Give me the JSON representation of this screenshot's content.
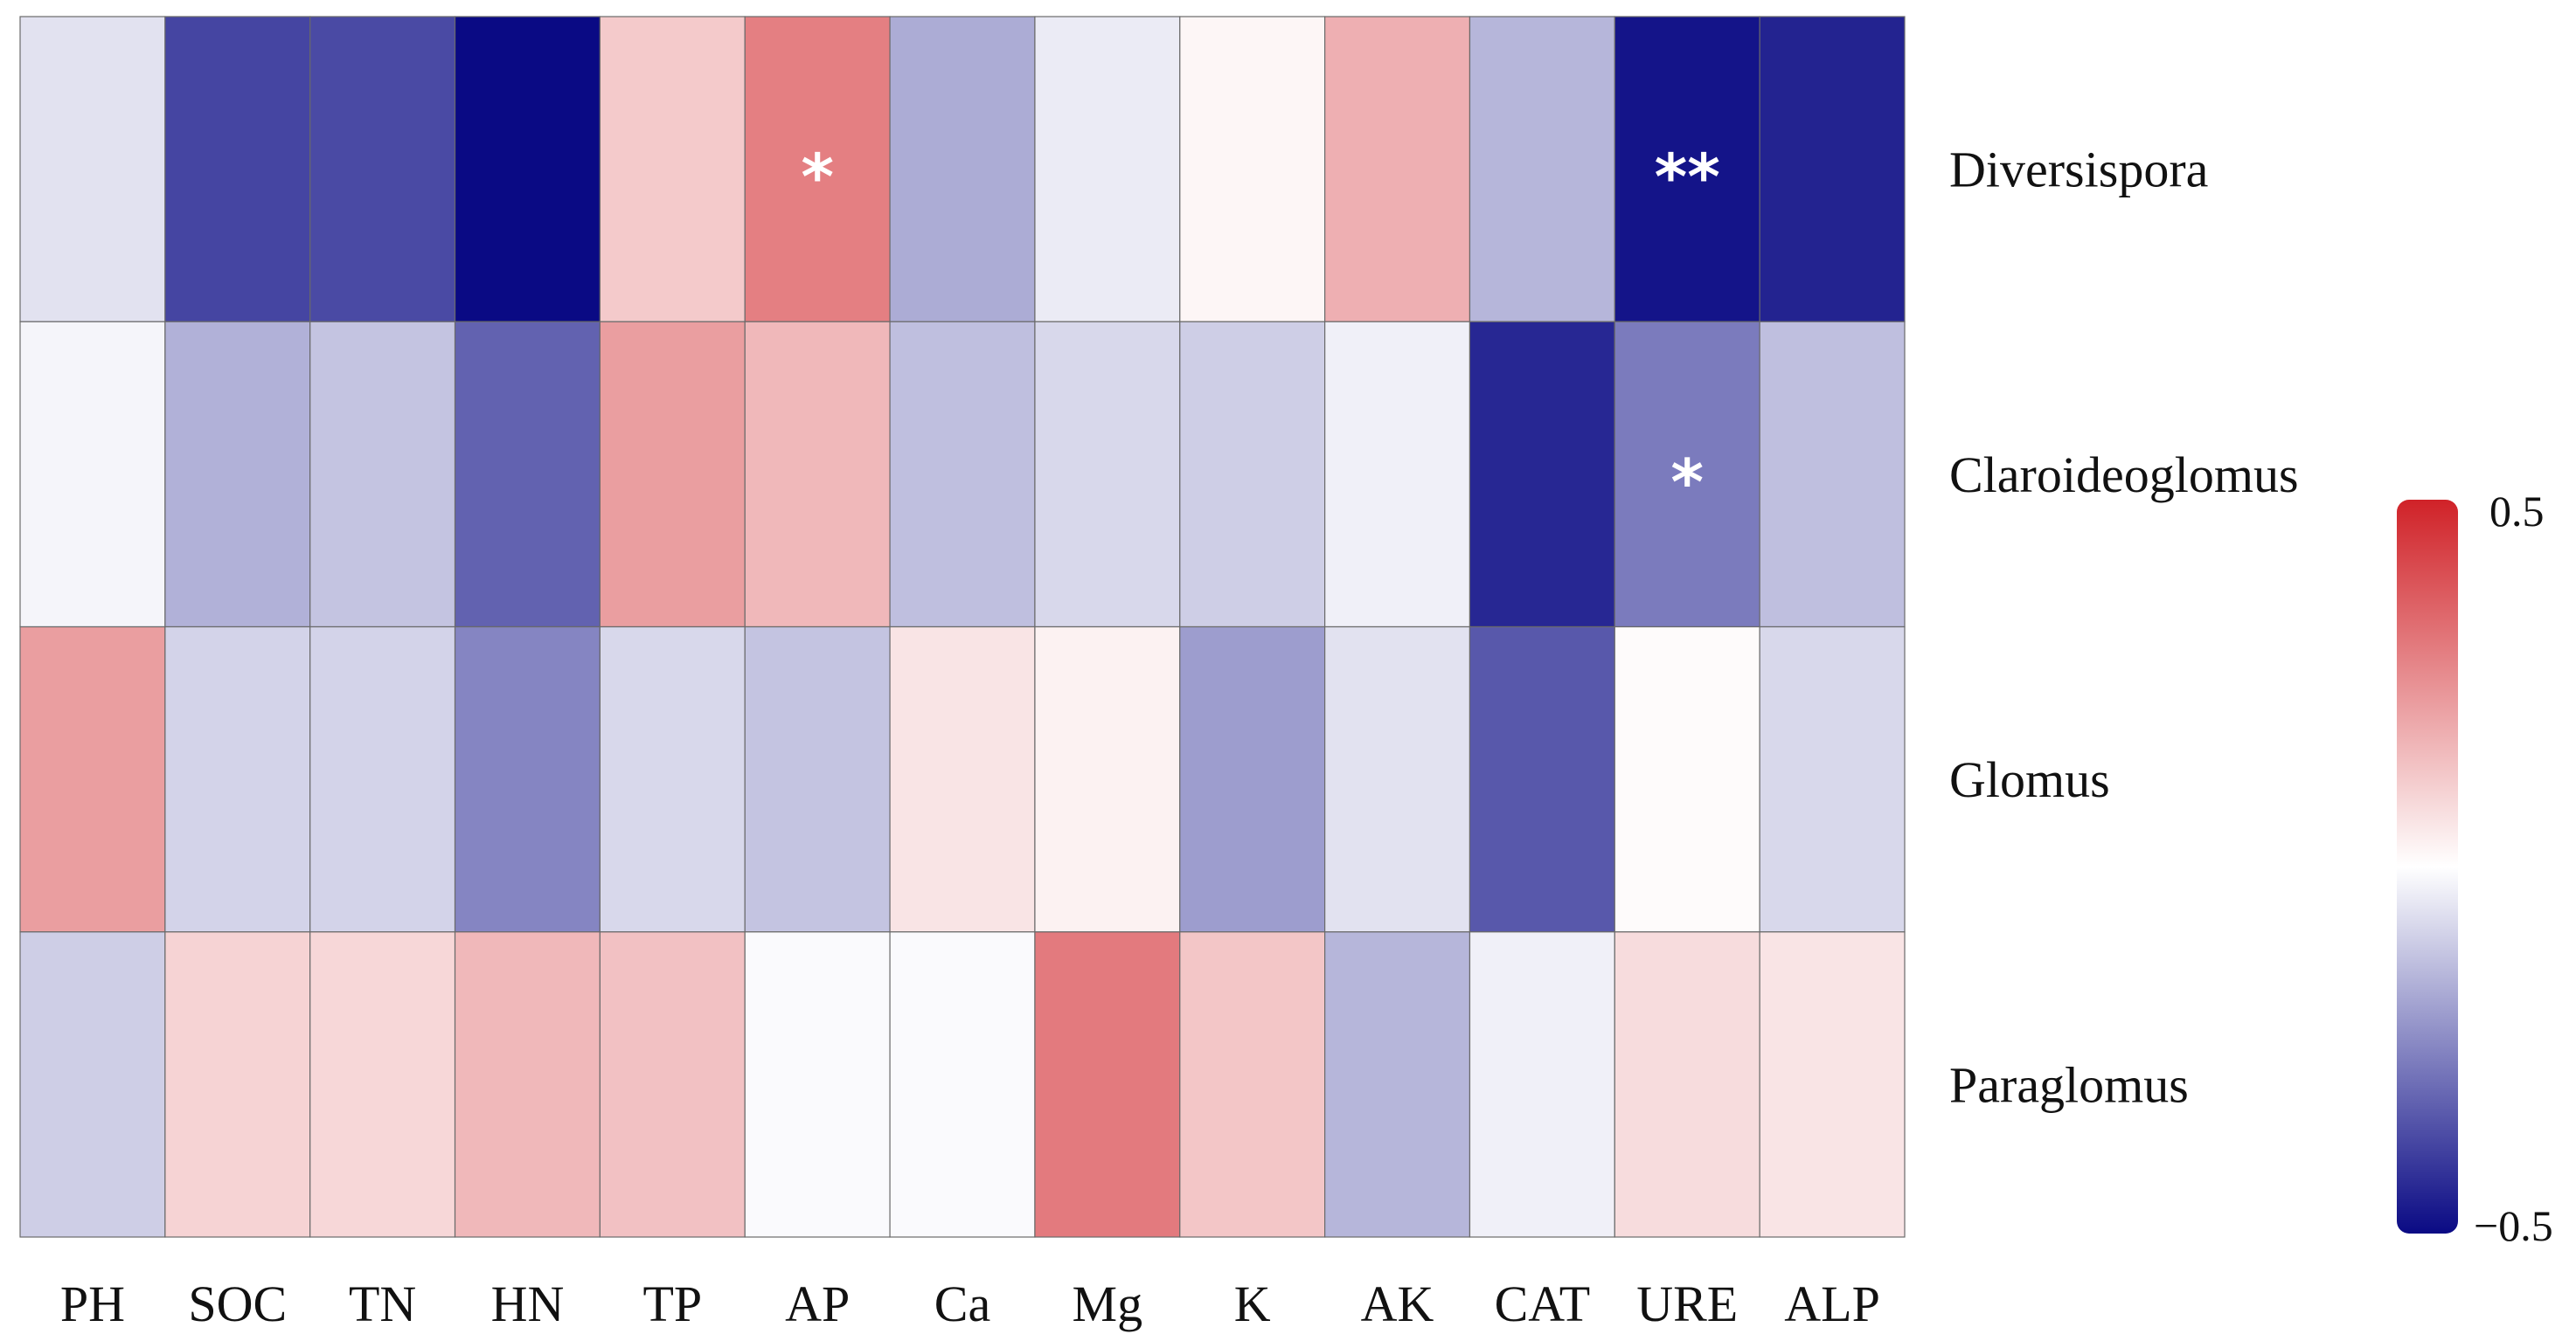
{
  "chart_data": {
    "type": "heatmap",
    "title": "",
    "xlabel": "",
    "ylabel": "",
    "columns": [
      "PH",
      "SOC",
      "TN",
      "HN",
      "TP",
      "AP",
      "Ca",
      "Mg",
      "K",
      "AK",
      "CAT",
      "URE",
      "ALP"
    ],
    "rows": [
      "Diversispora",
      "Claroideoglomus",
      "Glomus",
      "Paraglomus"
    ],
    "values": [
      [
        -0.06,
        -0.38,
        -0.37,
        -0.5,
        0.12,
        0.29,
        -0.17,
        -0.04,
        0.02,
        0.18,
        -0.15,
        -0.48,
        -0.45
      ],
      [
        -0.02,
        -0.16,
        -0.12,
        -0.32,
        0.22,
        0.16,
        -0.13,
        -0.08,
        -0.1,
        -0.03,
        -0.44,
        -0.27,
        -0.13
      ],
      [
        0.22,
        -0.09,
        -0.09,
        -0.25,
        -0.08,
        -0.12,
        0.06,
        0.03,
        -0.2,
        -0.06,
        -0.34,
        0.01,
        -0.08
      ],
      [
        -0.1,
        0.1,
        0.09,
        0.16,
        0.14,
        -0.01,
        -0.01,
        0.3,
        0.13,
        -0.15,
        -0.03,
        0.08,
        0.06
      ]
    ],
    "significance": [
      [
        "",
        "",
        "",
        "",
        "",
        "*",
        "",
        "",
        "",
        "",
        "",
        "**",
        ""
      ],
      [
        "",
        "",
        "",
        "",
        "",
        "",
        "",
        "",
        "",
        "",
        "",
        "*",
        ""
      ],
      [
        "",
        "",
        "",
        "",
        "",
        "",
        "",
        "",
        "",
        "",
        "",
        "",
        ""
      ],
      [
        "",
        "",
        "",
        "",
        "",
        "",
        "",
        "",
        "",
        "",
        "",
        "",
        ""
      ]
    ],
    "colorbar": {
      "range": [
        -0.5,
        0.5
      ],
      "max_label": "0.5",
      "min_label": "−0.5",
      "colors": {
        "low": "#0a0a84",
        "mid": "#ffffff",
        "high": "#d02228"
      }
    },
    "legend_position": "right"
  }
}
